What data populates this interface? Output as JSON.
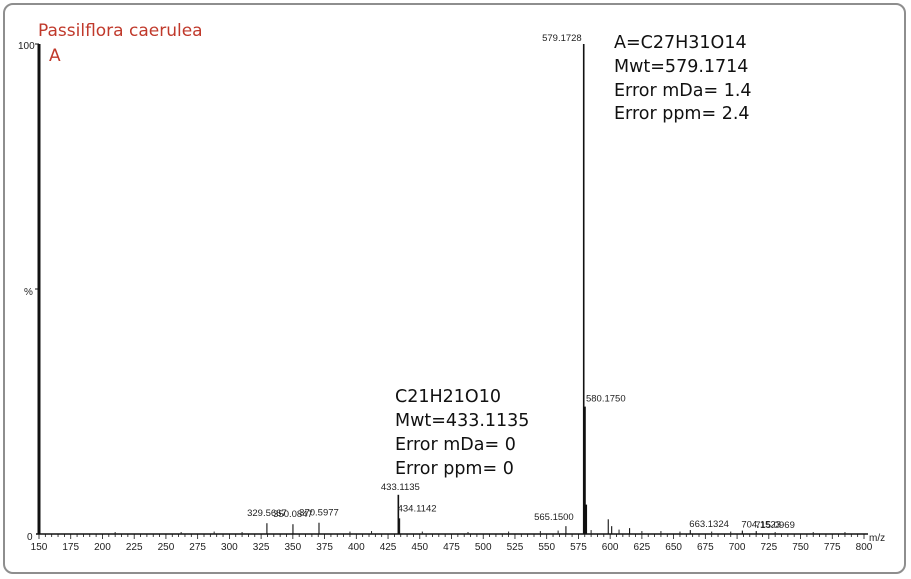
{
  "chart_data": {
    "type": "mass-spectrum",
    "sample_name": "Passilflora caerulea",
    "trace_label": "A",
    "xlabel": "m/z",
    "ylabel": "%",
    "xlim": [
      150,
      800
    ],
    "ylim": [
      0,
      100
    ],
    "x_ticks": [
      150,
      175,
      200,
      225,
      250,
      275,
      300,
      325,
      350,
      375,
      400,
      425,
      450,
      475,
      500,
      525,
      550,
      575,
      600,
      625,
      650,
      675,
      700,
      725,
      750,
      775,
      800
    ],
    "y_tick_labels": [
      "0",
      "%",
      "100"
    ],
    "peaks": [
      {
        "mz": 329.5667,
        "intensity": 2.2,
        "label": "329.5667"
      },
      {
        "mz": 350.0847,
        "intensity": 2.0,
        "label": "350.0847"
      },
      {
        "mz": 370.5977,
        "intensity": 2.3,
        "label": "370.5977"
      },
      {
        "mz": 433.1135,
        "intensity": 8.0,
        "label": "433.1135"
      },
      {
        "mz": 434.1142,
        "intensity": 3.2,
        "label": "434.1142"
      },
      {
        "mz": 565.15,
        "intensity": 1.6,
        "label": "565.1500"
      },
      {
        "mz": 579.1728,
        "intensity": 100,
        "label": "579.1728"
      },
      {
        "mz": 580.175,
        "intensity": 26,
        "label": "580.1750"
      },
      {
        "mz": 581.18,
        "intensity": 6.0,
        "label": ""
      },
      {
        "mz": 598.5,
        "intensity": 3.0,
        "label": ""
      },
      {
        "mz": 601.2,
        "intensity": 1.6,
        "label": ""
      },
      {
        "mz": 615.3,
        "intensity": 1.2,
        "label": ""
      },
      {
        "mz": 663.1324,
        "intensity": 0.8,
        "label": "663.1324"
      },
      {
        "mz": 704.1523,
        "intensity": 0.7,
        "label": "704.1523"
      },
      {
        "mz": 715.0969,
        "intensity": 0.6,
        "label": "715.0969"
      }
    ],
    "noise_peaks": [
      {
        "mz": 210,
        "intensity": 0.4
      },
      {
        "mz": 262,
        "intensity": 0.4
      },
      {
        "mz": 288,
        "intensity": 0.5
      },
      {
        "mz": 310,
        "intensity": 0.4
      },
      {
        "mz": 395,
        "intensity": 0.5
      },
      {
        "mz": 412,
        "intensity": 0.6
      },
      {
        "mz": 452,
        "intensity": 0.5
      },
      {
        "mz": 488,
        "intensity": 0.4
      },
      {
        "mz": 520,
        "intensity": 0.5
      },
      {
        "mz": 545,
        "intensity": 0.6
      },
      {
        "mz": 559,
        "intensity": 0.7
      },
      {
        "mz": 585,
        "intensity": 0.8
      },
      {
        "mz": 607,
        "intensity": 0.9
      },
      {
        "mz": 625,
        "intensity": 0.6
      },
      {
        "mz": 640,
        "intensity": 0.6
      },
      {
        "mz": 655,
        "intensity": 0.5
      },
      {
        "mz": 680,
        "intensity": 0.5
      },
      {
        "mz": 695,
        "intensity": 0.5
      },
      {
        "mz": 730,
        "intensity": 0.4
      },
      {
        "mz": 760,
        "intensity": 0.4
      },
      {
        "mz": 785,
        "intensity": 0.4
      }
    ],
    "annotations": [
      {
        "lines": [
          "A=C27H31O14",
          "Mwt=579.1714",
          "Error mDa= 1.4",
          "Error ppm= 2.4"
        ]
      },
      {
        "lines": [
          "C21H21O10",
          "Mwt=433.1135",
          "Error mDa= 0",
          "Error ppm= 0"
        ]
      }
    ]
  }
}
